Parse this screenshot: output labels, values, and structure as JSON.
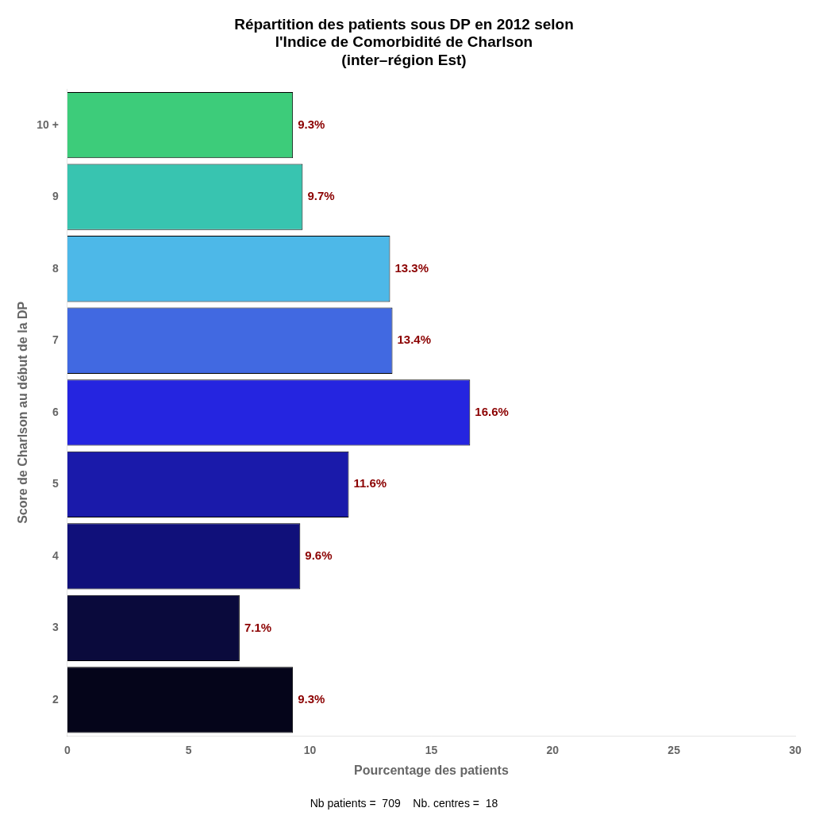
{
  "chart_data": {
    "type": "bar",
    "orientation": "horizontal",
    "title": "Répartition des patients sous DP en 2012 selon\nl'Indice de Comorbidité de Charlson\n(inter–région Est)",
    "subtitle": "Nb patients =  709    Nb. centres =  18",
    "xlabel": "Pourcentage des patients",
    "ylabel": "Score de Charlson au début de la DP",
    "categories": [
      "2",
      "3",
      "4",
      "5",
      "6",
      "7",
      "8",
      "9",
      "10 +"
    ],
    "values": [
      9.3,
      7.1,
      9.6,
      11.6,
      16.6,
      13.4,
      13.3,
      9.7,
      9.3
    ],
    "value_labels": [
      "9.3%",
      "7.1%",
      "9.6%",
      "11.6%",
      "16.6%",
      "13.4%",
      "13.3%",
      "9.7%",
      "9.3%"
    ],
    "colors": [
      "#05051a",
      "#0a0a3c",
      "#10107a",
      "#1a1aaa",
      "#2525e0",
      "#4169e1",
      "#4db8e8",
      "#38c4b0",
      "#3dcc7a"
    ],
    "xlim": [
      0,
      30
    ],
    "xticks": [
      0,
      5,
      10,
      15,
      20,
      25,
      30
    ],
    "grid": false,
    "data_labels": true
  }
}
